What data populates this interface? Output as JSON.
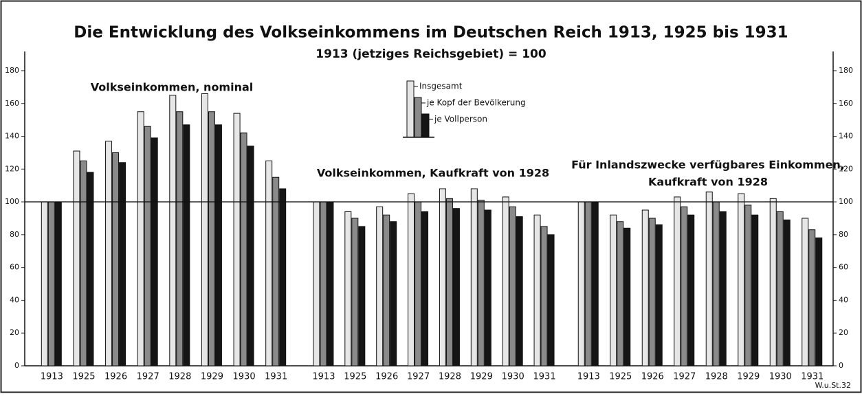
{
  "title": "Die Entwicklung des Volkseinkommens im Deutschen Reich 1913, 1925 bis 1931",
  "subtitle": "1913 (jetziges Reichsgebiet) = 100",
  "source": "W.u.St.32",
  "ylim": [
    0,
    180
  ],
  "yticks": [
    0,
    20,
    40,
    60,
    80,
    100,
    120,
    140,
    160,
    180
  ],
  "reference_line": 100,
  "legend": [
    {
      "name": "Insgesamt",
      "color": "#e6e6e6"
    },
    {
      "name": "je Kopf der Bevölkerung",
      "color": "#8a8a8a"
    },
    {
      "name": "je Vollperson",
      "color": "#151515"
    }
  ],
  "chart_data": [
    {
      "type": "bar",
      "title": [
        "Volkseinkommen, nominal"
      ],
      "categories": [
        "1913",
        "1925",
        "1926",
        "1927",
        "1928",
        "1929",
        "1930",
        "1931"
      ],
      "series": [
        {
          "values": [
            100,
            131,
            137,
            155,
            165,
            166,
            154,
            125
          ]
        },
        {
          "values": [
            100,
            125,
            130,
            146,
            155,
            155,
            142,
            115
          ]
        },
        {
          "values": [
            100,
            118,
            124,
            139,
            147,
            147,
            134,
            108
          ]
        }
      ]
    },
    {
      "type": "bar",
      "title": [
        "Volkseinkommen, Kaufkraft von 1928"
      ],
      "categories": [
        "1913",
        "1925",
        "1926",
        "1927",
        "1928",
        "1929",
        "1930",
        "1931"
      ],
      "series": [
        {
          "values": [
            100,
            94,
            97,
            105,
            108,
            108,
            103,
            92
          ]
        },
        {
          "values": [
            100,
            90,
            92,
            100,
            102,
            101,
            97,
            85
          ]
        },
        {
          "values": [
            100,
            85,
            88,
            94,
            96,
            95,
            91,
            80
          ]
        }
      ]
    },
    {
      "type": "bar",
      "title": [
        "Für Inlandszwecke verfügbares Einkommen,",
        "Kaufkraft von 1928"
      ],
      "categories": [
        "1913",
        "1925",
        "1926",
        "1927",
        "1928",
        "1929",
        "1930",
        "1931"
      ],
      "series": [
        {
          "values": [
            100,
            92,
            95,
            103,
            106,
            105,
            102,
            90
          ]
        },
        {
          "values": [
            100,
            88,
            90,
            97,
            100,
            98,
            94,
            83
          ]
        },
        {
          "values": [
            100,
            84,
            86,
            92,
            94,
            92,
            89,
            78
          ]
        }
      ]
    }
  ]
}
